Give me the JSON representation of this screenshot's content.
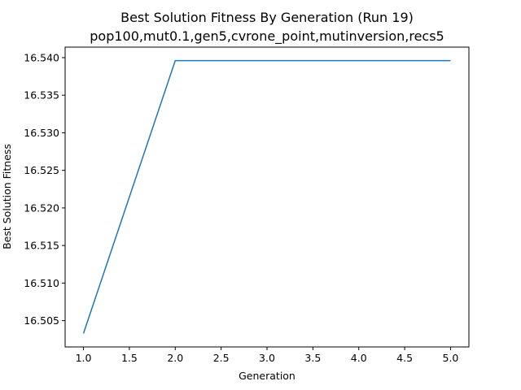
{
  "chart_data": {
    "type": "line",
    "title": "Best Solution Fitness By Generation (Run 19)",
    "subtitle": "pop100,mut0.1,gen5,cvrone_point,mutinversion,recs5",
    "xlabel": "Generation",
    "ylabel": "Best Solution Fitness",
    "x": [
      1,
      2,
      3,
      4,
      5
    ],
    "series": [
      {
        "values": [
          16.5033,
          16.5396,
          16.5396,
          16.5396,
          16.5396
        ],
        "color": "#1f77b4"
      }
    ],
    "xlim": [
      0.8,
      5.2
    ],
    "ylim": [
      16.5015,
      16.5414
    ],
    "xticks": [
      1.0,
      1.5,
      2.0,
      2.5,
      3.0,
      3.5,
      4.0,
      4.5,
      5.0
    ],
    "xtick_labels": [
      "1.0",
      "1.5",
      "2.0",
      "2.5",
      "3.0",
      "3.5",
      "4.0",
      "4.5",
      "5.0"
    ],
    "yticks": [
      16.505,
      16.51,
      16.515,
      16.52,
      16.525,
      16.53,
      16.535,
      16.54
    ],
    "ytick_labels": [
      "16.505",
      "16.510",
      "16.515",
      "16.520",
      "16.525",
      "16.530",
      "16.535",
      "16.540"
    ],
    "grid": false,
    "legend": "none"
  }
}
